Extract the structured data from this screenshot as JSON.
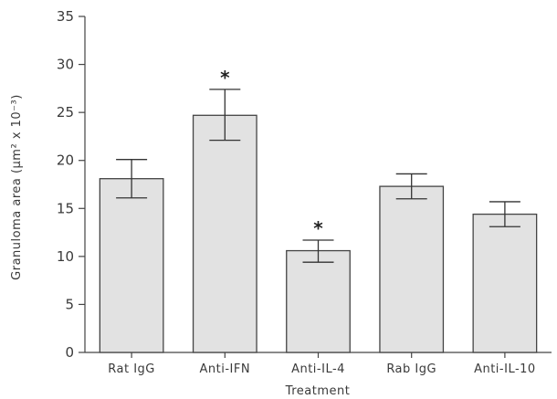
{
  "chart_data": {
    "type": "bar",
    "categories": [
      "Rat IgG",
      "Anti-IFN",
      "Anti-IL-4",
      "Rab IgG",
      "Anti-IL-10"
    ],
    "values": [
      18.1,
      24.7,
      10.6,
      17.3,
      14.4
    ],
    "error_low": [
      16.1,
      22.1,
      9.4,
      16.0,
      13.1
    ],
    "error_high": [
      20.1,
      27.4,
      11.7,
      18.6,
      15.7
    ],
    "annotations": [
      "",
      "*",
      "*",
      "",
      ""
    ],
    "xlabel": "Treatment",
    "ylabel": "Granuloma area (μm² x 10⁻³)",
    "ylim": [
      0,
      35
    ],
    "yticks": [
      "0",
      "5",
      "10",
      "15",
      "20",
      "25",
      "30",
      "35"
    ],
    "bar_color": "#e2e2e2",
    "axis_color": "#444444",
    "grid": false
  }
}
